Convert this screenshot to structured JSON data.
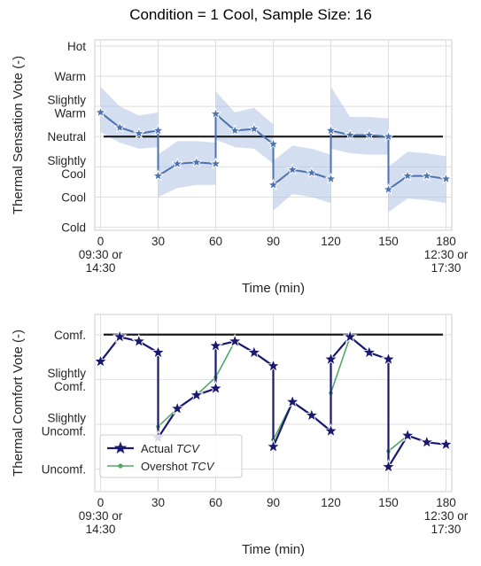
{
  "figure": {
    "title": "Condition = 1 Cool, Sample Size: 16"
  },
  "chart_data": [
    {
      "type": "line",
      "title": "",
      "xlabel": "Time (min)",
      "ylabel": "Thermal Sensation Vote (-)",
      "xlim": [
        -3,
        183
      ],
      "ylim": [
        -3.1,
        3.2
      ],
      "x_ticks": [
        {
          "value": 0,
          "lines": [
            "0",
            "09:30 or",
            "14:30"
          ]
        },
        {
          "value": 30,
          "lines": [
            "30"
          ]
        },
        {
          "value": 60,
          "lines": [
            "60"
          ]
        },
        {
          "value": 90,
          "lines": [
            "90"
          ]
        },
        {
          "value": 120,
          "lines": [
            "120"
          ]
        },
        {
          "value": 150,
          "lines": [
            "150"
          ]
        },
        {
          "value": 180,
          "lines": [
            "180",
            "12:30 or",
            "17:30"
          ]
        }
      ],
      "y_ticks": [
        {
          "value": 3,
          "lines": [
            "Hot"
          ]
        },
        {
          "value": 2,
          "lines": [
            "Warm"
          ]
        },
        {
          "value": 1,
          "lines": [
            "Slightly",
            "Warm"
          ]
        },
        {
          "value": 0,
          "lines": [
            "Neutral"
          ]
        },
        {
          "value": -1,
          "lines": [
            "Slightly",
            "Cool"
          ]
        },
        {
          "value": -2,
          "lines": [
            "Cool"
          ]
        },
        {
          "value": -3,
          "lines": [
            "Cold"
          ]
        }
      ],
      "grid": true,
      "reference_line": 0,
      "colors": {
        "line": "#4c72b0",
        "band": "#aec3e4",
        "reference": "#1a1a1a"
      },
      "series": [
        {
          "x": [
            0,
            10,
            20,
            30,
            30,
            40,
            50,
            60,
            60,
            70,
            80,
            90,
            90,
            100,
            110,
            120,
            120,
            130,
            140,
            150,
            150,
            160,
            170,
            180
          ],
          "y": [
            0.8,
            0.3,
            0.1,
            0.2,
            -1.3,
            -0.9,
            -0.85,
            -0.9,
            0.75,
            0.2,
            0.25,
            -0.25,
            -1.6,
            -1.1,
            -1.2,
            -1.4,
            0.2,
            0.05,
            0.05,
            0.0,
            -1.75,
            -1.3,
            -1.3,
            -1.4
          ],
          "lower": [
            0.15,
            -0.2,
            -0.4,
            -0.35,
            -2.0,
            -1.7,
            -1.6,
            -1.6,
            -0.1,
            -0.35,
            -0.4,
            -0.9,
            -2.45,
            -1.9,
            -2.0,
            -2.2,
            -0.4,
            -0.55,
            -0.6,
            -0.6,
            -2.5,
            -2.05,
            -2.1,
            -2.2
          ],
          "upper": [
            1.65,
            1.0,
            0.7,
            0.8,
            -0.6,
            -0.15,
            -0.15,
            -0.2,
            1.5,
            0.8,
            0.95,
            0.4,
            -0.8,
            -0.3,
            -0.4,
            -0.6,
            1.65,
            0.65,
            0.65,
            0.6,
            -1.0,
            -0.5,
            -0.55,
            -0.65
          ]
        }
      ]
    },
    {
      "type": "line",
      "title": "",
      "xlabel": "Time (min)",
      "ylabel": "Thermal Comfort Vote (-)",
      "xlim": [
        -3,
        183
      ],
      "ylim": [
        -3.5,
        0.45
      ],
      "x_ticks": [
        {
          "value": 0,
          "lines": [
            "0",
            "09:30 or",
            "14:30"
          ]
        },
        {
          "value": 30,
          "lines": [
            "30"
          ]
        },
        {
          "value": 60,
          "lines": [
            "60"
          ]
        },
        {
          "value": 90,
          "lines": [
            "90"
          ]
        },
        {
          "value": 120,
          "lines": [
            "120"
          ]
        },
        {
          "value": 150,
          "lines": [
            "150"
          ]
        },
        {
          "value": 180,
          "lines": [
            "180",
            "12:30 or",
            "17:30"
          ]
        }
      ],
      "y_ticks": [
        {
          "value": 0,
          "lines": [
            "Comf."
          ]
        },
        {
          "value": -1,
          "lines": [
            "Slightly",
            "Comf."
          ]
        },
        {
          "value": -2,
          "lines": [
            "Slightly",
            "Uncomf."
          ]
        },
        {
          "value": -3,
          "lines": [
            "Uncomf."
          ]
        }
      ],
      "grid": true,
      "reference_line": 0,
      "legend": {
        "position": "lower-left"
      },
      "series": [
        {
          "name": "Actual",
          "name_italic": "TCV",
          "color": "#191970",
          "marker": "star",
          "x": [
            0,
            10,
            20,
            30,
            30,
            40,
            50,
            60,
            60,
            70,
            80,
            90,
            90,
            100,
            110,
            120,
            120,
            130,
            140,
            150,
            150,
            160,
            170,
            180
          ],
          "y": [
            -0.6,
            -0.05,
            -0.15,
            -0.4,
            -2.3,
            -1.65,
            -1.35,
            -1.2,
            -0.25,
            -0.15,
            -0.4,
            -0.7,
            -2.5,
            -1.5,
            -1.8,
            -2.15,
            -0.55,
            -0.05,
            -0.4,
            -0.55,
            -2.95,
            -2.25,
            -2.4,
            -2.45
          ]
        },
        {
          "name": "Overshot",
          "name_italic": "TCV",
          "color": "#55a868",
          "marker": "dot",
          "x": [
            0,
            10,
            20,
            30,
            30,
            40,
            50,
            60,
            60,
            70,
            80,
            90,
            90,
            100,
            110,
            120,
            120,
            130,
            140,
            150,
            150,
            160,
            170,
            180
          ],
          "y": [
            -0.6,
            -0.05,
            -0.15,
            -0.4,
            -2.05,
            -1.65,
            -1.35,
            -0.95,
            -0.95,
            -0.15,
            -0.4,
            -0.7,
            -2.35,
            -1.5,
            -1.8,
            -2.15,
            -1.3,
            -0.05,
            -0.4,
            -0.55,
            -2.6,
            -2.25,
            -2.4,
            -2.45
          ]
        }
      ]
    }
  ]
}
